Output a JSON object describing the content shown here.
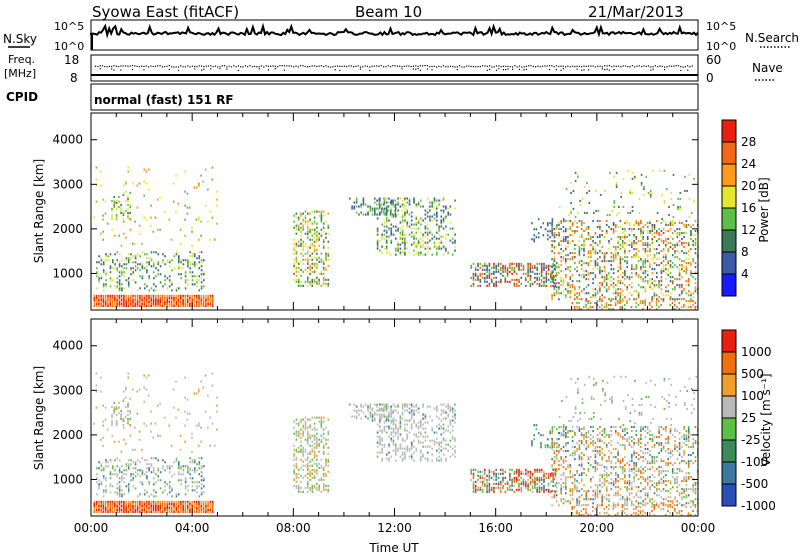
{
  "header": {
    "station": "Syowa East (fitACF)",
    "beam": "Beam 10",
    "date": "21/Mar/2013"
  },
  "sky_panel": {
    "left_label": "N.Sky",
    "left_ticks": [
      "10^5",
      "10^0"
    ],
    "right_label": "N.Search",
    "right_ticks": [
      "10^5",
      "10^0"
    ]
  },
  "freq_panel": {
    "left_label_1": "Freq.",
    "left_label_2": "[MHz]",
    "left_ticks": [
      "18",
      "8"
    ],
    "right_label": "Nave",
    "right_ticks": [
      "60",
      "0"
    ]
  },
  "cpid_panel": {
    "left_label": "CPID",
    "mode_text": "normal (fast) 151 RF"
  },
  "chart_data": [
    {
      "type": "heatmap",
      "title": "",
      "xlabel": "",
      "ylabel": "Slant Range [km]",
      "xlim": [
        0,
        24
      ],
      "ylim": [
        180,
        4600
      ],
      "yticks": [
        "1000",
        "2000",
        "3000",
        "4000"
      ],
      "colorbar": {
        "label": "Power [dB]",
        "ticks": [
          "4",
          "8",
          "12",
          "16",
          "20",
          "24",
          "28"
        ],
        "colors": [
          "#1a1aff",
          "#3c5aa8",
          "#3a7a58",
          "#5cc044",
          "#e6e632",
          "#ff9a1a",
          "#f06818",
          "#e82010"
        ]
      }
    },
    {
      "type": "heatmap",
      "title": "",
      "xlabel": "Time UT",
      "ylabel": "Slant Range [km]",
      "xlim": [
        0,
        24
      ],
      "ylim": [
        180,
        4600
      ],
      "xticks": [
        "00:00",
        "04:00",
        "08:00",
        "12:00",
        "16:00",
        "20:00",
        "00:00"
      ],
      "yticks": [
        "1000",
        "2000",
        "3000",
        "4000"
      ],
      "colorbar": {
        "label": "Velocity [m s⁻¹]",
        "ticks": [
          "1000",
          "500",
          "100",
          "25",
          "-25",
          "-100",
          "-500",
          "-1000"
        ],
        "colors": [
          "#2a50b8",
          "#3c78a0",
          "#3a8a5a",
          "#5cc044",
          "#b8b8b8",
          "#f0a028",
          "#f07010",
          "#e82010"
        ]
      }
    }
  ]
}
